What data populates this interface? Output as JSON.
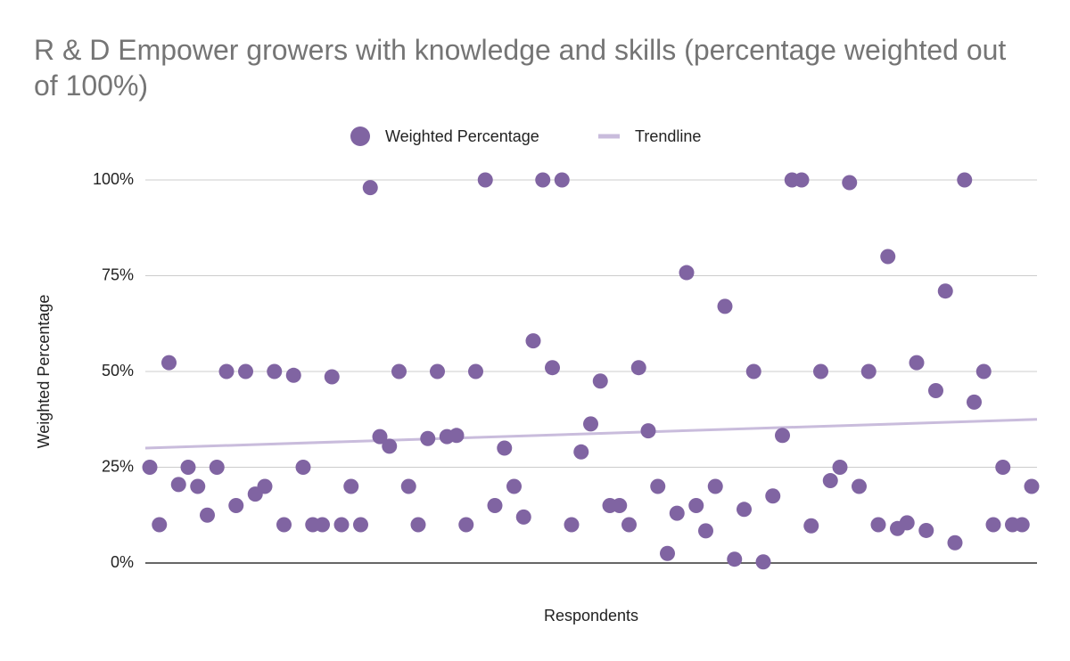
{
  "chart_data": {
    "type": "scatter",
    "title": "R & D Empower growers with knowledge and skills (percentage weighted out of 100%)",
    "xlabel": "Respondents",
    "ylabel": "Weighted Percentage",
    "series": [
      {
        "name": "Weighted Percentage",
        "color": "#8064a2",
        "values": [
          25,
          10,
          52.3,
          20.5,
          25,
          20,
          12.5,
          25,
          50,
          15,
          50,
          18,
          20,
          50,
          10,
          49,
          25,
          10,
          10,
          48.6,
          10,
          20,
          10,
          98,
          33,
          30.5,
          50,
          20,
          10,
          32.5,
          50,
          33,
          33.3,
          10,
          50,
          100,
          15,
          30,
          20,
          12,
          58,
          100,
          51,
          100,
          10,
          29,
          36.3,
          47.5,
          15,
          15,
          10,
          51,
          34.5,
          20,
          2.5,
          13,
          75.8,
          15,
          8.4,
          20,
          67,
          1,
          14,
          50,
          0.3,
          17.5,
          33.3,
          100,
          100,
          9.7,
          50,
          21.5,
          25,
          99.3,
          20,
          50,
          10,
          80,
          9,
          10.5,
          52.3,
          8.5,
          45,
          71,
          5.3,
          100,
          42,
          50,
          10,
          25,
          10,
          10,
          20
        ]
      }
    ],
    "trendline": {
      "name": "Trendline",
      "color": "#c9bcdc",
      "values": [
        30,
        37.5
      ]
    },
    "ylim": [
      0,
      100
    ],
    "yticks": [
      {
        "value": 0,
        "label": "0%"
      },
      {
        "value": 25,
        "label": "25%"
      },
      {
        "value": 50,
        "label": "50%"
      },
      {
        "value": 75,
        "label": "75%"
      },
      {
        "value": 100,
        "label": "100%"
      }
    ],
    "grid": true,
    "legend": "top"
  }
}
